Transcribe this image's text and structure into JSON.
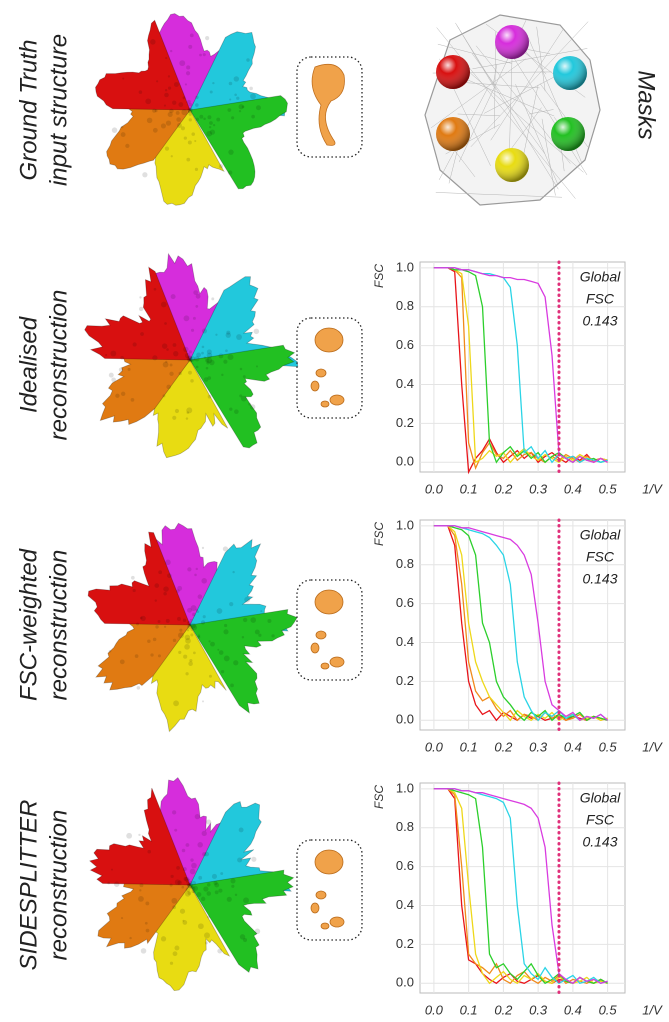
{
  "row_labels": [
    [
      "Ground Truth",
      "input structure"
    ],
    [
      "Idealised",
      "reconstruction"
    ],
    [
      "FSC-weighted",
      "reconstruction"
    ],
    [
      "SIDESPLITTER",
      "reconstruction"
    ]
  ],
  "masks_label": "Masks",
  "chart_data": [
    {
      "type": "line",
      "ylabel": "FSC",
      "xlabel": "1/V",
      "annotation": [
        "Global",
        "FSC",
        "0.143"
      ],
      "threshold_x": 0.36,
      "threshold_color": "#e0307a",
      "xlim": [
        -0.04,
        0.55
      ],
      "ylim": [
        -0.05,
        1.03
      ],
      "xticks": [
        {
          "value": 0,
          "label": "0.0"
        },
        0.1,
        0.2,
        0.3,
        0.4,
        0.5
      ],
      "yticks": [
        {
          "value": 0,
          "label": "0.0"
        },
        0.2,
        0.4,
        0.6,
        0.8,
        {
          "value": 1,
          "label": "1.0"
        }
      ],
      "grid": true,
      "x": [
        0,
        0.02,
        0.04,
        0.06,
        0.08,
        0.1,
        0.12,
        0.14,
        0.16,
        0.18,
        0.2,
        0.22,
        0.24,
        0.26,
        0.28,
        0.3,
        0.32,
        0.34,
        0.36,
        0.38,
        0.4,
        0.42,
        0.44,
        0.46,
        0.48,
        0.5
      ],
      "series": [
        {
          "color": "#e8141a",
          "values": [
            1,
            1,
            1,
            0.98,
            0.4,
            -0.05,
            0.02,
            0.06,
            0.12,
            0.05,
            0.0,
            0.03,
            0.06,
            0.02,
            0.05,
            0.0,
            0.03,
            0.05,
            0.02,
            0.0,
            0.03,
            0.01,
            0.04,
            0.0,
            0.02,
            0.01
          ]
        },
        {
          "color": "#f08a1c",
          "values": [
            1,
            1,
            1,
            0.99,
            0.95,
            0.1,
            -0.03,
            0.05,
            0.1,
            0.04,
            0.02,
            0.06,
            0.01,
            0.04,
            0.05,
            0.02,
            0.0,
            0.03,
            0.01,
            0.04,
            0.02,
            0.0,
            0.03,
            0.01,
            0.02,
            0.0
          ]
        },
        {
          "color": "#eed81a",
          "values": [
            1,
            1,
            1,
            0.99,
            0.97,
            0.7,
            0.0,
            0.02,
            0.06,
            0.03,
            0.05,
            0.0,
            0.04,
            0.07,
            0.03,
            0.01,
            0.04,
            0.02,
            0.0,
            0.03,
            0.01,
            0.04,
            0.02,
            0.0,
            0.02,
            0.01
          ]
        },
        {
          "color": "#2ccf2c",
          "values": [
            1,
            1,
            1,
            0.99,
            0.99,
            0.98,
            0.96,
            0.8,
            0.1,
            0.0,
            0.05,
            0.08,
            0.03,
            0.06,
            0.02,
            0.05,
            0.0,
            0.03,
            0.05,
            0.02,
            0.0,
            0.03,
            0.01,
            0.02,
            0.0,
            0.01
          ]
        },
        {
          "color": "#2ad4e6",
          "values": [
            1,
            1,
            1,
            1,
            0.99,
            0.99,
            0.98,
            0.97,
            0.97,
            0.96,
            0.95,
            0.9,
            0.6,
            0.05,
            0.08,
            0.02,
            0.06,
            0.0,
            0.04,
            0.02,
            0.03,
            0.0,
            0.02,
            0.01,
            0.0,
            0.01
          ]
        },
        {
          "color": "#d93be0",
          "values": [
            1,
            1,
            1,
            1,
            0.99,
            0.99,
            0.98,
            0.97,
            0.96,
            0.96,
            0.95,
            0.95,
            0.94,
            0.94,
            0.93,
            0.92,
            0.85,
            0.55,
            0.04,
            0.02,
            0.0,
            0.03,
            0.01,
            0.0,
            0.02,
            0.0
          ]
        }
      ]
    },
    {
      "type": "line",
      "ylabel": "FSC",
      "xlabel": "1/V",
      "annotation": [
        "Global",
        "FSC",
        "0.143"
      ],
      "threshold_x": 0.36,
      "threshold_color": "#e0307a",
      "xlim": [
        -0.04,
        0.55
      ],
      "ylim": [
        -0.05,
        1.03
      ],
      "xticks": [
        {
          "value": 0,
          "label": "0.0"
        },
        0.1,
        0.2,
        0.3,
        0.4,
        0.5
      ],
      "yticks": [
        {
          "value": 0,
          "label": "0.0"
        },
        0.2,
        0.4,
        0.6,
        0.8,
        {
          "value": 1,
          "label": "1.0"
        }
      ],
      "grid": true,
      "x": [
        0,
        0.02,
        0.04,
        0.06,
        0.08,
        0.1,
        0.12,
        0.14,
        0.16,
        0.18,
        0.2,
        0.22,
        0.24,
        0.26,
        0.28,
        0.3,
        0.32,
        0.34,
        0.36,
        0.38,
        0.4,
        0.42,
        0.44,
        0.46,
        0.48,
        0.5
      ],
      "series": [
        {
          "color": "#e8141a",
          "values": [
            1,
            1,
            1,
            0.9,
            0.5,
            0.2,
            0.08,
            0.03,
            0.05,
            0.0,
            0.04,
            0.02,
            0.0,
            0.03,
            0.01,
            0.02,
            0.0,
            0.01,
            0.03,
            0.0,
            0.02,
            0.01,
            0.0,
            0.02,
            0.01,
            0.0
          ]
        },
        {
          "color": "#f08a1c",
          "values": [
            1,
            1,
            1,
            0.95,
            0.7,
            0.3,
            0.15,
            0.1,
            0.12,
            0.06,
            0.02,
            0.05,
            0.0,
            0.03,
            0.02,
            0.0,
            0.04,
            0.01,
            0.02,
            0.0,
            0.01,
            0.03,
            0.0,
            0.02,
            0.0,
            0.01
          ]
        },
        {
          "color": "#eed81a",
          "values": [
            1,
            1,
            1,
            0.97,
            0.85,
            0.5,
            0.3,
            0.2,
            0.12,
            0.08,
            0.04,
            0.0,
            0.05,
            0.02,
            0.0,
            0.03,
            0.01,
            0.04,
            0.0,
            0.02,
            0.03,
            0.0,
            0.01,
            0.02,
            0.0,
            0.01
          ]
        },
        {
          "color": "#2ccf2c",
          "values": [
            1,
            1,
            1,
            0.99,
            0.98,
            0.95,
            0.85,
            0.5,
            0.4,
            0.2,
            0.12,
            0.08,
            0.03,
            0.0,
            0.04,
            0.02,
            0.05,
            0.0,
            0.03,
            0.01,
            0.02,
            0.04,
            0.0,
            0.02,
            0.01,
            0.0
          ]
        },
        {
          "color": "#2ad4e6",
          "values": [
            1,
            1,
            1,
            1,
            0.99,
            0.98,
            0.97,
            0.96,
            0.94,
            0.9,
            0.85,
            0.7,
            0.3,
            0.12,
            0.05,
            0.0,
            0.04,
            0.02,
            0.05,
            0.01,
            0.03,
            0.0,
            0.02,
            0.01,
            0.03,
            0.0
          ]
        },
        {
          "color": "#d93be0",
          "values": [
            1,
            1,
            1,
            1,
            0.99,
            0.99,
            0.98,
            0.97,
            0.96,
            0.95,
            0.94,
            0.93,
            0.9,
            0.85,
            0.75,
            0.5,
            0.2,
            0.08,
            0.05,
            0.02,
            0.04,
            0.0,
            0.02,
            0.01,
            0.03,
            0.0
          ]
        }
      ]
    },
    {
      "type": "line",
      "ylabel": "FSC",
      "xlabel": "1/V",
      "annotation": [
        "Global",
        "FSC",
        "0.143"
      ],
      "threshold_x": 0.36,
      "threshold_color": "#e0307a",
      "xlim": [
        -0.04,
        0.55
      ],
      "ylim": [
        -0.05,
        1.03
      ],
      "xticks": [
        {
          "value": 0,
          "label": "0.0"
        },
        0.1,
        0.2,
        0.3,
        0.4,
        0.5
      ],
      "yticks": [
        {
          "value": 0,
          "label": "0.0"
        },
        0.2,
        0.4,
        0.6,
        0.8,
        {
          "value": 1,
          "label": "1.0"
        }
      ],
      "grid": true,
      "x": [
        0,
        0.02,
        0.04,
        0.06,
        0.08,
        0.1,
        0.12,
        0.14,
        0.16,
        0.18,
        0.2,
        0.22,
        0.24,
        0.26,
        0.28,
        0.3,
        0.32,
        0.34,
        0.36,
        0.38,
        0.4,
        0.42,
        0.44,
        0.46,
        0.48,
        0.5
      ],
      "series": [
        {
          "color": "#e8141a",
          "values": [
            1,
            1,
            1,
            0.95,
            0.4,
            0.12,
            0.1,
            0.05,
            0.02,
            0.0,
            0.03,
            0.05,
            0.01,
            0.0,
            0.02,
            0.04,
            0.01,
            0.0,
            0.02,
            0.01,
            0.0,
            0.03,
            0.01,
            0.0,
            0.02,
            0.0
          ]
        },
        {
          "color": "#f08a1c",
          "values": [
            1,
            1,
            1,
            0.97,
            0.6,
            0.15,
            0.1,
            0.08,
            0.05,
            0.1,
            0.02,
            0.0,
            0.04,
            0.06,
            0.02,
            0.0,
            0.03,
            0.01,
            0.04,
            0.0,
            0.02,
            0.01,
            0.0,
            0.02,
            0.01,
            0.0
          ]
        },
        {
          "color": "#eed81a",
          "values": [
            1,
            1,
            1,
            0.98,
            0.9,
            0.5,
            0.15,
            0.05,
            0.0,
            0.03,
            0.06,
            0.02,
            0.0,
            0.04,
            0.02,
            0.05,
            0.01,
            0.0,
            0.03,
            0.02,
            0.0,
            0.01,
            0.03,
            0.0,
            0.01,
            0.0
          ]
        },
        {
          "color": "#2ccf2c",
          "values": [
            1,
            1,
            1,
            0.99,
            0.98,
            0.97,
            0.95,
            0.7,
            0.15,
            0.08,
            0.1,
            0.05,
            0.02,
            0.06,
            0.1,
            0.04,
            0.0,
            0.02,
            0.05,
            0.01,
            0.0,
            0.03,
            0.01,
            0.0,
            0.02,
            0.0
          ]
        },
        {
          "color": "#2ad4e6",
          "values": [
            1,
            1,
            1,
            1,
            0.99,
            0.99,
            0.98,
            0.97,
            0.96,
            0.95,
            0.93,
            0.85,
            0.4,
            0.1,
            0.05,
            0.02,
            0.08,
            0.03,
            0.0,
            0.02,
            0.04,
            0.0,
            0.01,
            0.03,
            0.0,
            0.01
          ]
        },
        {
          "color": "#d93be0",
          "values": [
            1,
            1,
            1,
            1,
            0.99,
            0.99,
            0.98,
            0.98,
            0.97,
            0.96,
            0.95,
            0.94,
            0.93,
            0.92,
            0.9,
            0.85,
            0.7,
            0.3,
            0.05,
            0.02,
            0.0,
            0.03,
            0.01,
            0.02,
            0.0,
            0.01
          ]
        }
      ]
    }
  ]
}
